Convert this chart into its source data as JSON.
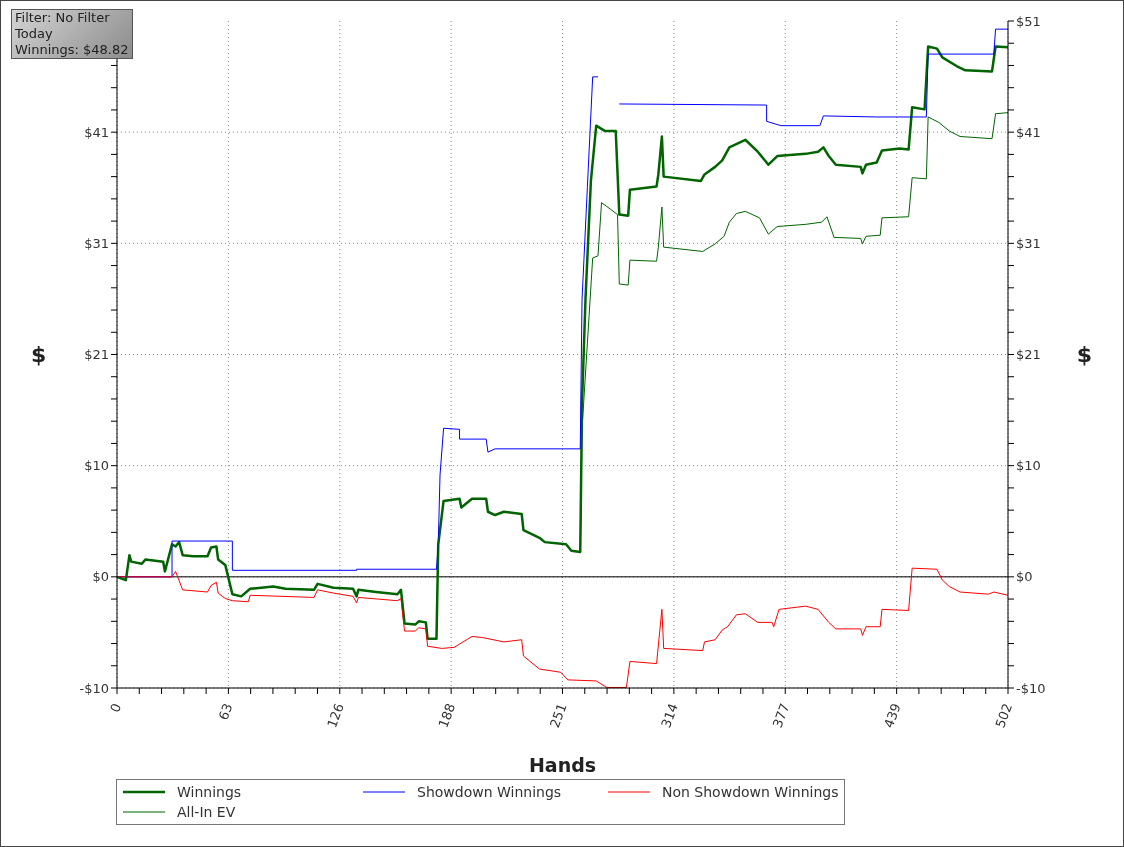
{
  "chart_data": {
    "type": "line",
    "xlabel": "Hands",
    "ylabel": "$",
    "y2label": "$",
    "annotations": [
      "Filter: No Filter",
      "Today",
      "Winnings: $48.82"
    ],
    "xlim": [
      0,
      502
    ],
    "xticks": [
      {
        "value": 0,
        "label": "0"
      },
      {
        "value": 12.55,
        "label": null
      },
      {
        "value": 25.1,
        "label": null
      },
      {
        "value": 37.65,
        "label": null
      },
      {
        "value": 50.2,
        "label": null
      },
      {
        "value": 62.75,
        "label": "63"
      },
      {
        "value": 75.3,
        "label": null
      },
      {
        "value": 87.85,
        "label": null
      },
      {
        "value": 100.4,
        "label": null
      },
      {
        "value": 112.95,
        "label": null
      },
      {
        "value": 125.5,
        "label": "126"
      },
      {
        "value": 138.05,
        "label": null
      },
      {
        "value": 150.6,
        "label": null
      },
      {
        "value": 163.15,
        "label": null
      },
      {
        "value": 175.7,
        "label": null
      },
      {
        "value": 188.25,
        "label": "188"
      },
      {
        "value": 200.8,
        "label": null
      },
      {
        "value": 213.35,
        "label": null
      },
      {
        "value": 225.9,
        "label": null
      },
      {
        "value": 238.45,
        "label": null
      },
      {
        "value": 251,
        "label": "251"
      },
      {
        "value": 263.55,
        "label": null
      },
      {
        "value": 276.1,
        "label": null
      },
      {
        "value": 288.65,
        "label": null
      },
      {
        "value": 301.2,
        "label": null
      },
      {
        "value": 313.75,
        "label": "314"
      },
      {
        "value": 326.3,
        "label": null
      },
      {
        "value": 338.85,
        "label": null
      },
      {
        "value": 351.4,
        "label": null
      },
      {
        "value": 363.95,
        "label": null
      },
      {
        "value": 376.5,
        "label": "377"
      },
      {
        "value": 389.05,
        "label": null
      },
      {
        "value": 401.6,
        "label": null
      },
      {
        "value": 414.15,
        "label": null
      },
      {
        "value": 426.7,
        "label": null
      },
      {
        "value": 439.25,
        "label": "439"
      },
      {
        "value": 451.8,
        "label": null
      },
      {
        "value": 464.35,
        "label": null
      },
      {
        "value": 476.9,
        "label": null
      },
      {
        "value": 489.45,
        "label": null
      },
      {
        "value": 502,
        "label": "502"
      }
    ],
    "ylim": [
      -10.25,
      51.25
    ],
    "yticks": [
      {
        "value": -10.25,
        "label": "-$10"
      },
      {
        "value": -8.2,
        "label": null
      },
      {
        "value": -6.15,
        "label": null
      },
      {
        "value": -4.1,
        "label": null
      },
      {
        "value": -2.05,
        "label": null
      },
      {
        "value": 0,
        "label": "$0"
      },
      {
        "value": 2.05,
        "label": null
      },
      {
        "value": 4.1,
        "label": null
      },
      {
        "value": 6.15,
        "label": null
      },
      {
        "value": 8.2,
        "label": null
      },
      {
        "value": 10.25,
        "label": "$10"
      },
      {
        "value": 12.3,
        "label": null
      },
      {
        "value": 14.35,
        "label": null
      },
      {
        "value": 16.4,
        "label": null
      },
      {
        "value": 18.45,
        "label": null
      },
      {
        "value": 20.5,
        "label": "$21"
      },
      {
        "value": 22.55,
        "label": null
      },
      {
        "value": 24.6,
        "label": null
      },
      {
        "value": 26.65,
        "label": null
      },
      {
        "value": 28.7,
        "label": null
      },
      {
        "value": 30.75,
        "label": "$31"
      },
      {
        "value": 32.8,
        "label": null
      },
      {
        "value": 34.85,
        "label": null
      },
      {
        "value": 36.9,
        "label": null
      },
      {
        "value": 38.95,
        "label": null
      },
      {
        "value": 41,
        "label": "$41"
      },
      {
        "value": 43.05,
        "label": null
      },
      {
        "value": 45.1,
        "label": null
      },
      {
        "value": 47.15,
        "label": null
      },
      {
        "value": 49.2,
        "label": null
      },
      {
        "value": 51.25,
        "label": null
      }
    ],
    "y2lim": [
      -10.25,
      51.25
    ],
    "y2ticks": [
      {
        "value": -10.25,
        "label": "-$10"
      },
      {
        "value": -8.2,
        "label": null
      },
      {
        "value": -6.15,
        "label": null
      },
      {
        "value": -4.1,
        "label": null
      },
      {
        "value": -2.05,
        "label": null
      },
      {
        "value": 0,
        "label": "$0"
      },
      {
        "value": 2.05,
        "label": null
      },
      {
        "value": 4.1,
        "label": null
      },
      {
        "value": 6.15,
        "label": null
      },
      {
        "value": 8.2,
        "label": null
      },
      {
        "value": 10.25,
        "label": "$10"
      },
      {
        "value": 12.3,
        "label": null
      },
      {
        "value": 14.35,
        "label": null
      },
      {
        "value": 16.4,
        "label": null
      },
      {
        "value": 18.45,
        "label": null
      },
      {
        "value": 20.5,
        "label": "$21"
      },
      {
        "value": 22.55,
        "label": null
      },
      {
        "value": 24.6,
        "label": null
      },
      {
        "value": 26.65,
        "label": null
      },
      {
        "value": 28.7,
        "label": null
      },
      {
        "value": 30.75,
        "label": "$31"
      },
      {
        "value": 32.8,
        "label": null
      },
      {
        "value": 34.85,
        "label": null
      },
      {
        "value": 36.9,
        "label": null
      },
      {
        "value": 38.95,
        "label": null
      },
      {
        "value": 41,
        "label": "$41"
      },
      {
        "value": 43.05,
        "label": null
      },
      {
        "value": 45.1,
        "label": null
      },
      {
        "value": 47.15,
        "label": null
      },
      {
        "value": 49.2,
        "label": null
      },
      {
        "value": 51.25,
        "label": "$51"
      }
    ],
    "grid": true,
    "legend": "bottom",
    "marker": "none",
    "line_style": "solid",
    "ref_lines": [
      {
        "axis": "y",
        "value": 0,
        "color": "#000000"
      }
    ],
    "series": [
      {
        "name": "Winnings",
        "color": "#006400",
        "x": [
          0,
          5,
          7,
          8,
          14,
          16,
          26,
          27,
          31,
          33,
          35,
          37,
          43,
          51,
          53,
          56,
          57,
          61,
          65,
          70,
          75,
          88,
          95,
          111,
          113,
          122,
          133,
          135,
          136,
          146,
          158,
          160,
          162,
          168,
          170,
          174,
          175,
          180,
          181,
          184,
          193,
          194,
          200,
          208,
          209,
          213,
          218,
          228,
          229,
          238,
          241,
          253,
          256,
          261,
          262,
          264,
          267,
          270,
          275,
          281,
          283,
          288,
          289,
          304,
          305,
          307,
          308,
          329,
          331,
          337,
          341,
          345,
          354,
          361,
          367,
          372,
          388,
          395,
          398,
          401,
          405,
          419,
          420,
          422,
          428,
          431,
          441,
          446,
          448,
          455,
          457,
          462,
          465,
          473,
          478,
          493,
          495,
          502
        ],
        "values": [
          0,
          -0.3,
          2.0,
          1.4,
          1.2,
          1.6,
          1.4,
          0.5,
          3.0,
          2.8,
          3.2,
          2.0,
          1.9,
          1.9,
          2.7,
          2.8,
          1.6,
          1.1,
          -1.6,
          -1.8,
          -1.1,
          -0.9,
          -1.1,
          -1.2,
          -0.65,
          -1.0,
          -1.1,
          -1.8,
          -1.2,
          -1.4,
          -1.6,
          -1.2,
          -4.3,
          -4.4,
          -4.1,
          -4.2,
          -5.7,
          -5.7,
          3.0,
          7.0,
          7.2,
          6.4,
          7.2,
          7.2,
          6.0,
          5.7,
          6.0,
          5.8,
          4.3,
          3.6,
          3.2,
          3.0,
          2.4,
          2.3,
          16.0,
          25.8,
          36.5,
          41.6,
          41.1,
          41.1,
          33.4,
          33.3,
          35.7,
          36.0,
          37.1,
          40.6,
          36.9,
          36.5,
          37.1,
          37.8,
          38.4,
          39.6,
          40.3,
          39.2,
          38.0,
          38.8,
          39.0,
          39.2,
          39.6,
          38.8,
          38.0,
          37.8,
          37.2,
          38.0,
          38.2,
          39.3,
          39.5,
          39.4,
          43.3,
          43.1,
          48.9,
          48.7,
          47.9,
          47.1,
          46.7,
          46.6,
          48.9,
          48.82
        ]
      },
      {
        "name": "Showdown Winnings",
        "color": "#0000ff",
        "x": [
          0,
          31,
          31,
          65,
          65,
          135,
          135,
          180,
          181,
          182,
          184,
          193,
          193,
          208,
          209,
          213,
          261,
          262,
          265,
          268,
          271,
          272,
          282,
          283,
          366,
          366,
          374,
          396,
          398,
          428,
          456,
          457,
          494,
          495,
          502
        ],
        "values": [
          0,
          0,
          3.3,
          3.3,
          0.6,
          0.6,
          0.7,
          0.7,
          3.0,
          9.4,
          13.7,
          13.6,
          12.7,
          12.7,
          11.5,
          11.8,
          11.8,
          25.5,
          35.9,
          46.1,
          46.1,
          null,
          null,
          43.6,
          43.5,
          42.0,
          41.6,
          41.6,
          42.5,
          42.4,
          42.4,
          48.2,
          48.2,
          50.5,
          50.5
        ]
      },
      {
        "name": "Non Showdown Winnings",
        "color": "#ff0000",
        "x": [
          0,
          31,
          33,
          37,
          51,
          53,
          56,
          57,
          61,
          65,
          74,
          75,
          111,
          113,
          122,
          133,
          135,
          136,
          158,
          160,
          162,
          168,
          170,
          174,
          175,
          183,
          190,
          200,
          206,
          218,
          228,
          229,
          238,
          250,
          254,
          270,
          276,
          287,
          289,
          304,
          307,
          308,
          330,
          331,
          337,
          341,
          344,
          349,
          354,
          361,
          369,
          370,
          373,
          388,
          395,
          401,
          405,
          419,
          420,
          422,
          430,
          431,
          446,
          448,
          462,
          465,
          469,
          475,
          491,
          494,
          502
        ],
        "values": [
          0,
          0,
          0.5,
          -1.2,
          -1.4,
          -0.8,
          -0.5,
          -1.5,
          -2.0,
          -2.2,
          -2.3,
          -1.7,
          -1.9,
          -1.2,
          -1.5,
          -1.8,
          -2.4,
          -1.9,
          -2.2,
          -2.0,
          -5.0,
          -5.0,
          -4.7,
          -4.8,
          -6.4,
          -6.6,
          -6.5,
          -5.5,
          -5.6,
          -6.0,
          -5.8,
          -7.3,
          -8.5,
          -8.8,
          -9.5,
          -9.6,
          -10.2,
          -10.2,
          -7.8,
          -8.0,
          -3.0,
          -6.6,
          -6.8,
          -6.0,
          -5.8,
          -4.9,
          -4.6,
          -3.5,
          -3.4,
          -4.2,
          -4.2,
          -4.6,
          -3.0,
          -2.7,
          -3.0,
          -4.2,
          -4.8,
          -4.8,
          -5.4,
          -4.6,
          -4.6,
          -3.0,
          -3.1,
          0.8,
          0.7,
          -0.3,
          -0.9,
          -1.4,
          -1.6,
          -1.4,
          -1.7
        ]
      },
      {
        "name": "All-In EV",
        "color": "#006400",
        "x": [
          0,
          5,
          7,
          8,
          14,
          16,
          26,
          27,
          31,
          33,
          35,
          37,
          43,
          51,
          53,
          56,
          57,
          61,
          65,
          70,
          75,
          88,
          95,
          111,
          113,
          122,
          133,
          135,
          136,
          146,
          158,
          160,
          162,
          168,
          170,
          174,
          175,
          180,
          181,
          184,
          193,
          194,
          200,
          208,
          209,
          213,
          218,
          228,
          229,
          238,
          241,
          253,
          256,
          261,
          262,
          266,
          268,
          271,
          273,
          278,
          282,
          283,
          288,
          289,
          304,
          305,
          307,
          308,
          330,
          337,
          342,
          345,
          349,
          354,
          362,
          367,
          372,
          388,
          397,
          400,
          404,
          419,
          420,
          422,
          430,
          431,
          446,
          448,
          456,
          457,
          463,
          469,
          475,
          493,
          495,
          502
        ],
        "values": [
          0,
          -0.3,
          2.0,
          1.4,
          1.2,
          1.6,
          1.4,
          0.5,
          3.0,
          2.8,
          3.2,
          2.0,
          1.9,
          1.9,
          2.7,
          2.8,
          1.6,
          1.1,
          -1.6,
          -1.8,
          -1.1,
          -0.9,
          -1.1,
          -1.2,
          -0.65,
          -1.0,
          -1.1,
          -1.8,
          -1.2,
          -1.4,
          -1.6,
          -1.2,
          -4.3,
          -4.4,
          -4.1,
          -4.2,
          -5.7,
          -5.7,
          3.0,
          7.0,
          7.2,
          6.4,
          7.2,
          7.2,
          6.0,
          5.7,
          6.0,
          5.8,
          4.3,
          3.6,
          3.2,
          3.0,
          2.4,
          2.3,
          13.6,
          24.1,
          29.4,
          29.6,
          34.5,
          33.9,
          33.4,
          27.0,
          26.9,
          29.2,
          29.1,
          30.4,
          34.1,
          30.4,
          30.0,
          30.7,
          31.4,
          32.7,
          33.5,
          33.7,
          33.1,
          31.6,
          32.3,
          32.5,
          32.7,
          33.2,
          31.3,
          31.2,
          30.7,
          31.4,
          31.5,
          33.1,
          33.2,
          36.8,
          36.7,
          42.4,
          41.9,
          41.1,
          40.6,
          40.4,
          42.7,
          42.8
        ]
      }
    ]
  }
}
